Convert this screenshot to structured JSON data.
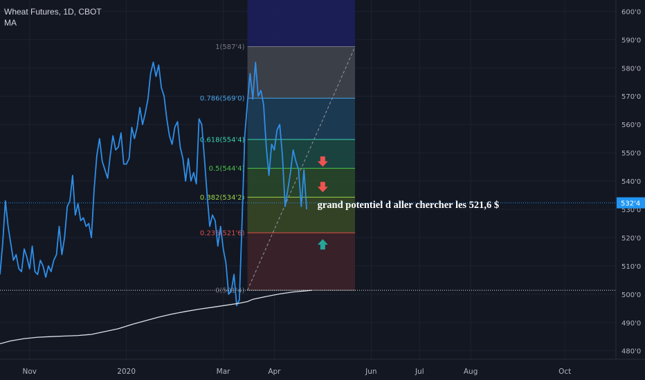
{
  "header": {
    "symbol_line": "Wheat Futures, 1D, CBOT",
    "indicator_label": "MA"
  },
  "colors": {
    "background": "#131722",
    "grid": "#1e2230",
    "axis_text": "#b2b5be",
    "price_line": "#2f8fe8",
    "ma_line": "#dfe2e8",
    "current_price": "#2196f3",
    "arrow_down": "#ef5350",
    "arrow_up": "#26a69a"
  },
  "chart_data": {
    "type": "line",
    "title": "Wheat Futures, 1D, CBOT",
    "ylim": [
      477,
      604
    ],
    "y_ticks": [
      {
        "v": 600,
        "label": "600'0"
      },
      {
        "v": 590,
        "label": "590'0"
      },
      {
        "v": 580,
        "label": "580'0"
      },
      {
        "v": 570,
        "label": "570'0"
      },
      {
        "v": 560,
        "label": "560'0"
      },
      {
        "v": 550,
        "label": "550'0"
      },
      {
        "v": 540,
        "label": "540'0"
      },
      {
        "v": 530,
        "label": "530'0"
      },
      {
        "v": 520,
        "label": "520'0"
      },
      {
        "v": 510,
        "label": "510'0"
      },
      {
        "v": 500,
        "label": "500'0"
      },
      {
        "v": 490,
        "label": "490'0"
      },
      {
        "v": 480,
        "label": "480'0"
      }
    ],
    "x_ticks": [
      {
        "t": 7,
        "label": "Nov"
      },
      {
        "t": 43,
        "label": "2020"
      },
      {
        "t": 79,
        "label": "Mar"
      },
      {
        "t": 98,
        "label": "Apr"
      },
      {
        "t": 134,
        "label": "Jun"
      },
      {
        "t": 152,
        "label": "Jul"
      },
      {
        "t": 171,
        "label": "Aug"
      },
      {
        "t": 206,
        "label": "Oct"
      }
    ],
    "t_range": [
      -4,
      225
    ],
    "series": [
      {
        "name": "Wheat Futures",
        "kind": "price",
        "x": [
          -4,
          -3,
          -2,
          -1,
          0,
          1,
          2,
          3,
          4,
          5,
          6,
          7,
          8,
          9,
          10,
          11,
          12,
          13,
          14,
          15,
          16,
          17,
          18,
          19,
          20,
          21,
          22,
          23,
          24,
          25,
          26,
          27,
          28,
          29,
          30,
          31,
          32,
          33,
          34,
          35,
          36,
          37,
          38,
          39,
          40,
          41,
          42,
          43,
          44,
          45,
          46,
          47,
          48,
          49,
          50,
          51,
          52,
          53,
          54,
          55,
          56,
          57,
          58,
          59,
          60,
          61,
          62,
          63,
          64,
          65,
          66,
          67,
          68,
          69,
          70,
          71,
          72,
          73,
          74,
          75,
          76,
          77,
          78,
          79,
          80,
          81,
          82,
          83,
          84,
          85,
          86,
          87,
          88,
          89,
          90,
          91,
          92,
          93,
          94,
          95,
          96,
          97,
          98,
          99,
          100,
          101,
          102,
          103,
          104,
          105,
          106,
          107,
          108,
          109,
          110
        ],
        "values": [
          507,
          518,
          533,
          524,
          518,
          512,
          514,
          509,
          508,
          516,
          513,
          509,
          517,
          508,
          507,
          512,
          510,
          506,
          510,
          508,
          512,
          514,
          524,
          514,
          520,
          531,
          533,
          542,
          528,
          532,
          526,
          527,
          524,
          525,
          520,
          537,
          549,
          555,
          547,
          544,
          541,
          549,
          556,
          551,
          552,
          557,
          546,
          546,
          548,
          559,
          555,
          559,
          566,
          560,
          564,
          569,
          578,
          582,
          577,
          581,
          573,
          570,
          562,
          556,
          553,
          559,
          561,
          552,
          548,
          540,
          548,
          540,
          543,
          539,
          562,
          560,
          548,
          535,
          524,
          528,
          526,
          517,
          524,
          516,
          511,
          500,
          501,
          507,
          496,
          498,
          526,
          556,
          568,
          578,
          569,
          582,
          570,
          572,
          567,
          552,
          542,
          553,
          551,
          558,
          560,
          549,
          531,
          537,
          543,
          551,
          547,
          544,
          531,
          544,
          530
        ],
        "values_note": "approximate closing prices read off the chart"
      },
      {
        "name": "MA",
        "kind": "ma",
        "x": [
          -4,
          0,
          5,
          10,
          15,
          20,
          25,
          30,
          35,
          40,
          45,
          50,
          55,
          60,
          65,
          70,
          75,
          80,
          85,
          88,
          90,
          95,
          100,
          105,
          110,
          112
        ],
        "values": [
          482.5,
          483.5,
          484.3,
          484.8,
          485,
          485.2,
          485.4,
          485.8,
          486.8,
          487.8,
          489.3,
          490.6,
          491.9,
          493,
          493.9,
          494.7,
          495.4,
          496.1,
          496.8,
          497.4,
          498.2,
          499.2,
          500.1,
          500.8,
          501.2,
          501.4
        ]
      }
    ],
    "fibonacci": {
      "t_start": 88,
      "t_end": 128,
      "levels": [
        {
          "ratio": "1",
          "price_label": "587'4",
          "v": 587.5,
          "color": "#787b86",
          "fill": "#43464f"
        },
        {
          "ratio": "0.786",
          "price_label": "569'0",
          "v": 569.3,
          "color": "#4aa6e8",
          "fill": "#1e3f5a"
        },
        {
          "ratio": "0.618",
          "price_label": "554'4",
          "v": 554.7,
          "color": "#3dd6b2",
          "fill": "#1c4a44"
        },
        {
          "ratio": "0.5",
          "price_label": "544'4",
          "v": 544.5,
          "color": "#4cc24a",
          "fill": "#2a4a2a"
        },
        {
          "ratio": "0.382",
          "price_label": "534'2",
          "v": 534.3,
          "color": "#9ad24a",
          "fill": "#3a4a25"
        },
        {
          "ratio": "0.236",
          "price_label": "521'6",
          "v": 521.7,
          "color": "#e0504a",
          "fill": "#3f2329"
        },
        {
          "ratio": "0",
          "price_label": "501'4",
          "v": 501.4,
          "color": "#787b86",
          "fill": "#3e2128"
        }
      ],
      "top_fill": "#1c1f5a"
    },
    "current_price": {
      "v": 532.3,
      "label": "532'4"
    },
    "support_price": 501.4,
    "arrows": [
      {
        "dir": "down",
        "t": 116,
        "v": 546.5
      },
      {
        "dir": "down",
        "t": 116,
        "v": 537.5
      },
      {
        "dir": "up",
        "t": 116,
        "v": 518
      }
    ],
    "annotation": {
      "text": "grand potentiel d aller chercher les 521,6 $",
      "t": 114,
      "v": 531.5
    }
  }
}
